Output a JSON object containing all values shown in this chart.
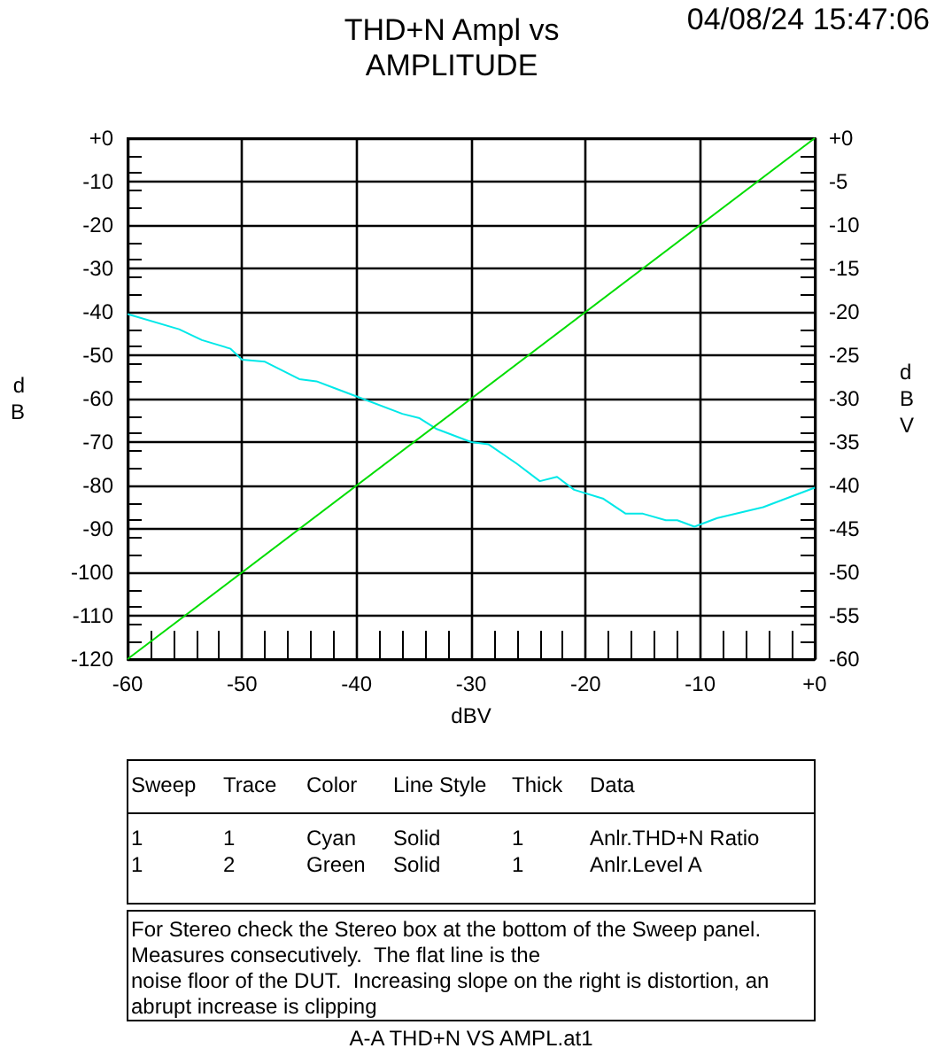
{
  "chart_data": {
    "type": "line",
    "title": "THD+N Ampl vs\nAMPLITUDE",
    "xlabel": "dBV",
    "ylabel": "d\nB",
    "y2label": "d\nB\nV",
    "annotations": [
      "04/08/24 15:47:06",
      "Sweep",
      "Trace",
      "Color",
      "Line Style",
      "Thick",
      "Data",
      "1",
      "1",
      "Cyan",
      "Solid",
      "1",
      "Anlr.THD+N Ratio",
      "1",
      "2",
      "Green",
      "Solid",
      "1",
      "Anlr.Level A",
      "For Stereo check the Stereo box at the bottom of the Sweep panel.\nMeasures consecutively.  The flat line is the\nnoise floor of the DUT.  Increasing slope on the right is distortion, an\nabrupt increase is clipping",
      "A-A THD+N VS AMPL.at1"
    ],
    "series": [
      {
        "color": "#00e8e8",
        "x": [
          -60,
          -55.5,
          -53.5,
          -51,
          -50,
          -48,
          -45,
          -43.5,
          -42,
          -40,
          -36,
          -34.5,
          -33,
          -30,
          -28.5,
          -26,
          -24,
          -22.5,
          -21,
          -18.5,
          -16.5,
          -15,
          -13,
          -12,
          -10.5,
          -8.5,
          -4.5,
          0
        ],
        "values": [
          -40.5,
          -44,
          -46.5,
          -48.5,
          -51,
          -51.5,
          -55.5,
          -56,
          -57.5,
          -59.5,
          -63.5,
          -64.5,
          -67,
          -70,
          -70.5,
          -75,
          -79,
          -78,
          -81,
          -83,
          -86.5,
          -86.5,
          -88,
          -88,
          -89.5,
          -87.5,
          -85,
          -80.5
        ]
      },
      {
        "color": "#00dd00",
        "axis": "y2",
        "x": [
          -60,
          0
        ],
        "values": [
          -60,
          0
        ]
      }
    ],
    "xlim": [
      -60,
      0
    ],
    "xticks": [
      -60,
      -50,
      -40,
      -30,
      -20,
      -10,
      {
        "value": 0,
        "label": "+0"
      }
    ],
    "ylim": [
      -120,
      0
    ],
    "yticks": [
      -120,
      -110,
      -100,
      -90,
      -80,
      -70,
      -60,
      -50,
      -40,
      -30,
      -20,
      -10,
      {
        "value": 0,
        "label": "+0"
      }
    ],
    "y2lim": [
      -60,
      0
    ],
    "y2ticks": [
      -60,
      -55,
      -50,
      -45,
      -40,
      -35,
      -30,
      -25,
      -20,
      -15,
      -10,
      -5,
      {
        "value": 0,
        "label": "+0"
      }
    ],
    "grid": true
  }
}
